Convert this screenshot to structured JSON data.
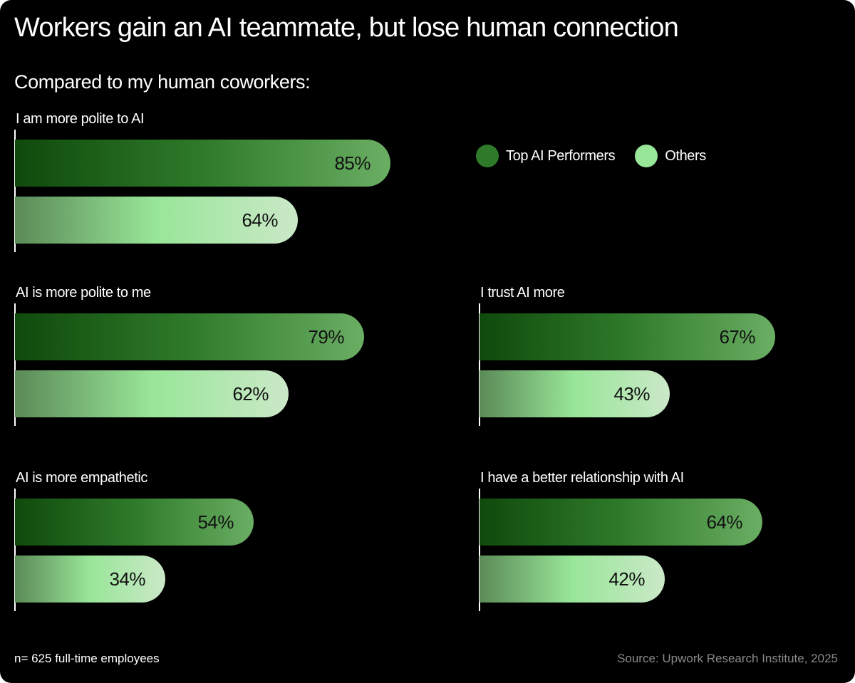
{
  "title": "Workers gain an AI teammate, but lose human connection",
  "subtitle": "Compared to my human coworkers:",
  "legend": [
    {
      "label": "Top AI Performers",
      "color": "#2f7a2a"
    },
    {
      "label": "Others",
      "color": "#98e698"
    }
  ],
  "chart_data": {
    "type": "bar",
    "orientation": "horizontal",
    "unit": "%",
    "categories": [
      "I am more polite to AI",
      "AI is more polite to me",
      "I trust AI more",
      "AI is more empathetic",
      "I have a better relationship with AI"
    ],
    "series": [
      {
        "name": "Top AI Performers",
        "values": [
          85,
          79,
          67,
          54,
          64
        ],
        "labels": [
          "85%",
          "79%",
          "67%",
          "54%",
          "64%"
        ]
      },
      {
        "name": "Others",
        "values": [
          64,
          62,
          43,
          34,
          42
        ],
        "labels": [
          "64%",
          "62%",
          "43%",
          "34%",
          "42%"
        ]
      }
    ],
    "xlim": [
      0,
      100
    ],
    "grid": false,
    "legend_position": "top-right"
  },
  "footnote": "n= 625 full-time employees",
  "source": "Source: Upwork Research Institute, 2025"
}
